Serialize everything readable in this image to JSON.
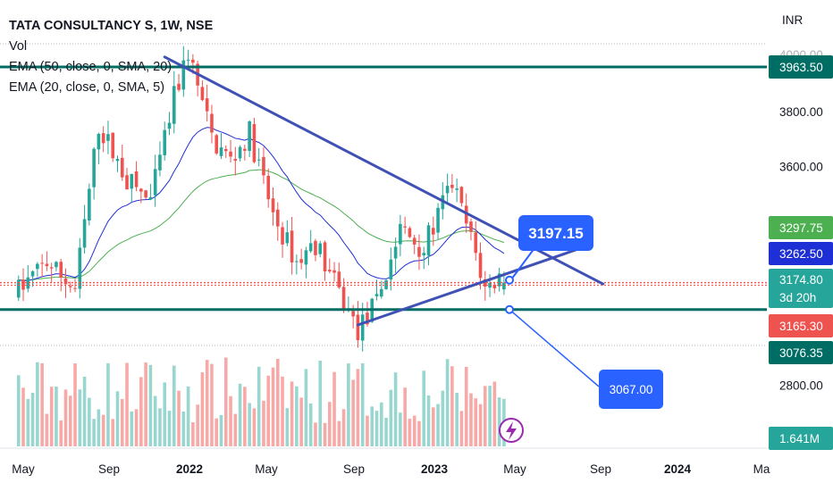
{
  "legend": {
    "title": "TATA CONSULTANCY S, 1W, NSE",
    "vol": "Vol",
    "ema50": "EMA (50, close, 0, SMA, 20)",
    "ema20": "EMA (20, close, 0, SMA, 5)"
  },
  "currency": "INR",
  "colors": {
    "up": "#26a69a",
    "down": "#ef5350",
    "ema20": "#1f2fd6",
    "ema50": "#4caf50",
    "trend": "#3f51b5",
    "hline": "#006d64",
    "label_blue": "#2962ff"
  },
  "chart_data": {
    "type": "candlestick",
    "ylim": [
      2600,
      4100
    ],
    "x_ticks": [
      "May",
      "Sep",
      "2022",
      "May",
      "Sep",
      "2023",
      "May",
      "Sep",
      "2024",
      "Ma"
    ],
    "y_ticks": [
      {
        "value": 3800,
        "label": "3800.00"
      },
      {
        "value": 3600,
        "label": "3600.00"
      },
      {
        "value": 2800,
        "label": "2800.00"
      }
    ],
    "horizontal_lines": [
      3963.5,
      3076.35
    ],
    "trendlines": [
      {
        "from": [
          "2021-12-05",
          4000
        ],
        "to": [
          "2023-09-17",
          3170
        ]
      },
      {
        "from": [
          "2022-09-18",
          3020
        ],
        "to": [
          "2023-08-20",
          3305
        ]
      }
    ],
    "price_tags": [
      {
        "label": "3963.50",
        "style": "hline"
      },
      {
        "label": "3297.75",
        "style": "ema50"
      },
      {
        "label": "3262.50",
        "style": "ema20"
      },
      {
        "label": "3174.80",
        "sub": "3d 20h",
        "style": "up"
      },
      {
        "label": "3165.30",
        "style": "down"
      },
      {
        "label": "3076.35",
        "style": "hline"
      },
      {
        "label": "1.641M",
        "style": "vol"
      }
    ],
    "callouts": [
      {
        "label": "3197.15",
        "value": 3197.15
      },
      {
        "label": "3067.00",
        "value": 3067.0
      }
    ],
    "series": [
      {
        "name": "EMA (20, close, 0, SMA, 5)",
        "last": 3262.5
      },
      {
        "name": "EMA (50, close, 0, SMA, 20)",
        "last": 3297.75
      }
    ]
  }
}
